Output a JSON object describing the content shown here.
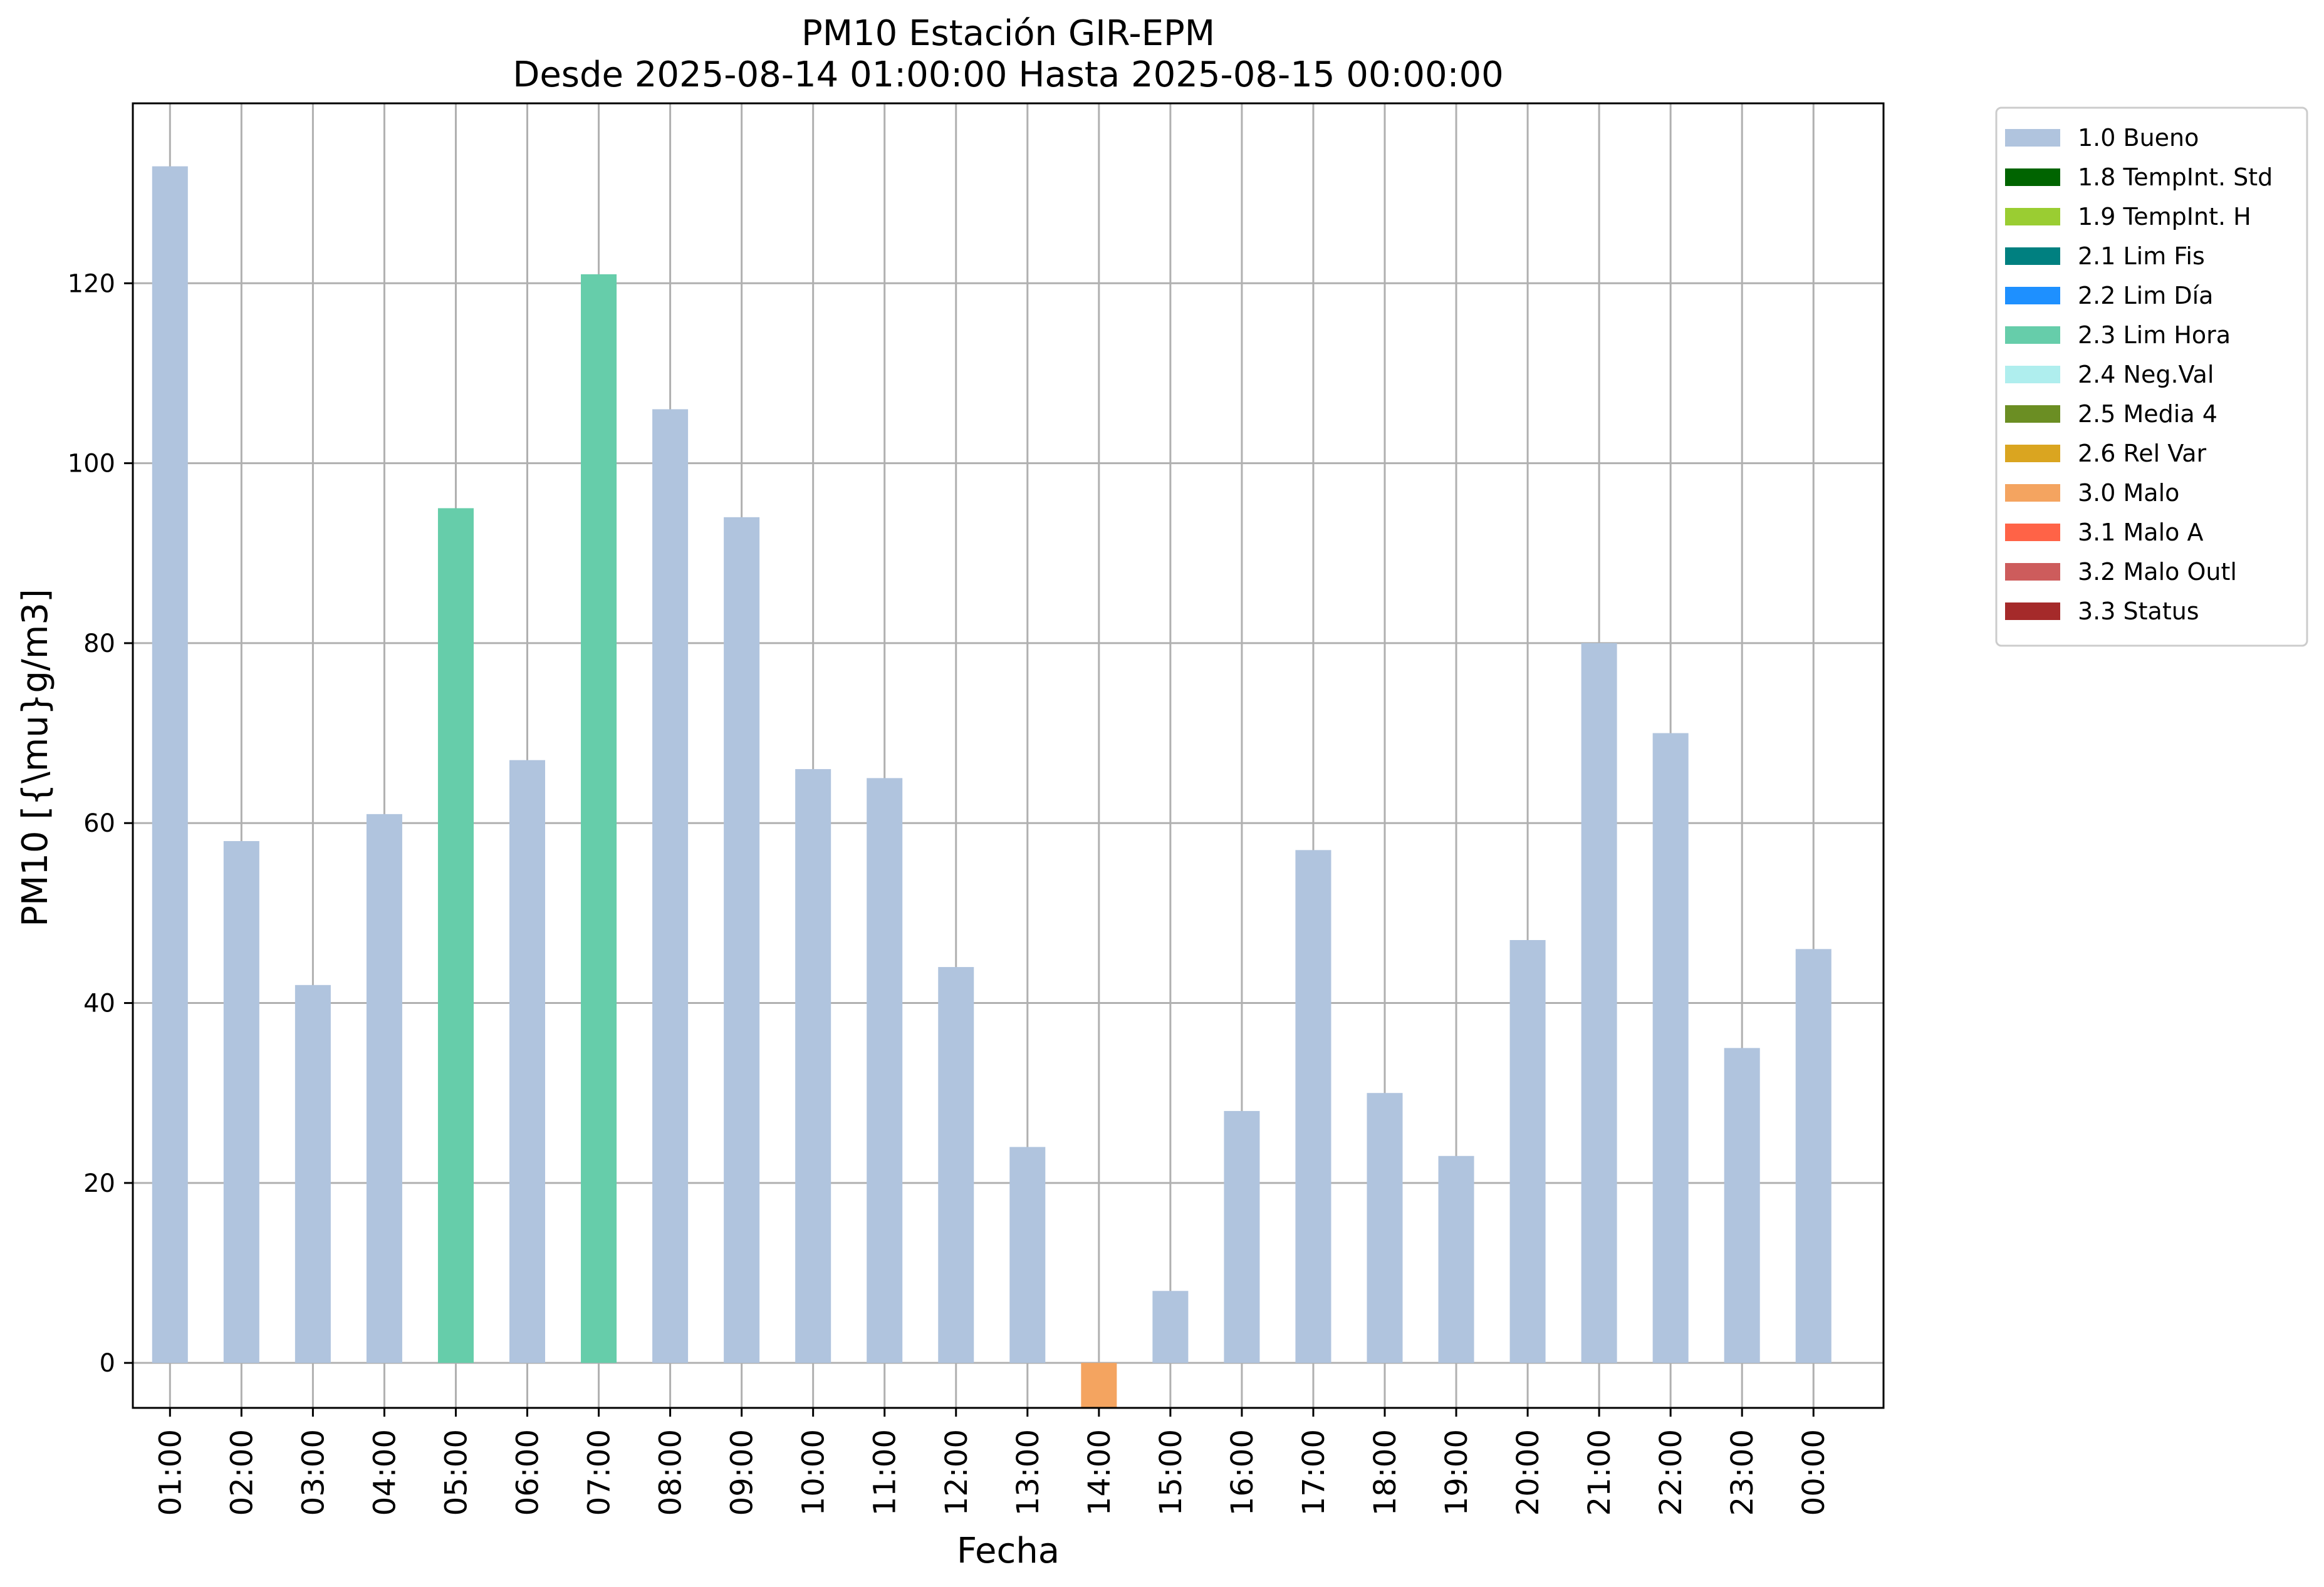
{
  "chart_data": {
    "type": "bar",
    "title": "PM10 Estación GIR-EPM",
    "subtitle": "Desde 2025-08-14 01:00:00 Hasta 2025-08-15 00:00:00",
    "xlabel": "Fecha",
    "ylabel": "PM10 [{\\mu}g/m3]",
    "ylim": [
      -5,
      140
    ],
    "yticks": [
      "0",
      "20",
      "40",
      "60",
      "80",
      "100",
      "120"
    ],
    "grid": true,
    "legend_position": "outside-top-right",
    "categories": [
      "01:00",
      "02:00",
      "03:00",
      "04:00",
      "05:00",
      "06:00",
      "07:00",
      "08:00",
      "09:00",
      "10:00",
      "11:00",
      "12:00",
      "13:00",
      "14:00",
      "15:00",
      "16:00",
      "17:00",
      "18:00",
      "19:00",
      "20:00",
      "21:00",
      "22:00",
      "23:00",
      "00:00"
    ],
    "values": [
      133,
      58,
      42,
      61,
      95,
      67,
      121,
      106,
      94,
      66,
      65,
      44,
      24,
      -5,
      8,
      28,
      57,
      30,
      23,
      47,
      80,
      70,
      35,
      46
    ],
    "flags": [
      "1.0 Bueno",
      "1.0 Bueno",
      "1.0 Bueno",
      "1.0 Bueno",
      "2.3 Lim Hora",
      "1.0 Bueno",
      "2.3 Lim Hora",
      "1.0 Bueno",
      "1.0 Bueno",
      "1.0 Bueno",
      "1.0 Bueno",
      "1.0 Bueno",
      "1.0 Bueno",
      "3.0 Malo",
      "1.0 Bueno",
      "1.0 Bueno",
      "1.0 Bueno",
      "1.0 Bueno",
      "1.0 Bueno",
      "1.0 Bueno",
      "1.0 Bueno",
      "1.0 Bueno",
      "1.0 Bueno",
      "1.0 Bueno"
    ],
    "legend": [
      {
        "label": "1.0 Bueno",
        "color": "#b0c4de"
      },
      {
        "label": "1.8 TempInt. Std",
        "color": "#006400"
      },
      {
        "label": "1.9 TempInt. H",
        "color": "#9acd32"
      },
      {
        "label": "2.1 Lim Fis",
        "color": "#008080"
      },
      {
        "label": "2.2 Lim Día",
        "color": "#1e90ff"
      },
      {
        "label": "2.3 Lim Hora",
        "color": "#66cdaa"
      },
      {
        "label": "2.4 Neg.Val",
        "color": "#afeeee"
      },
      {
        "label": "2.5 Media 4",
        "color": "#6b8e23"
      },
      {
        "label": "2.6 Rel Var",
        "color": "#daa520"
      },
      {
        "label": "3.0 Malo",
        "color": "#f4a460"
      },
      {
        "label": "3.1 Malo A",
        "color": "#ff6347"
      },
      {
        "label": "3.2 Malo Outl",
        "color": "#cd5c5c"
      },
      {
        "label": "3.3 Status",
        "color": "#a52a2a"
      }
    ]
  }
}
